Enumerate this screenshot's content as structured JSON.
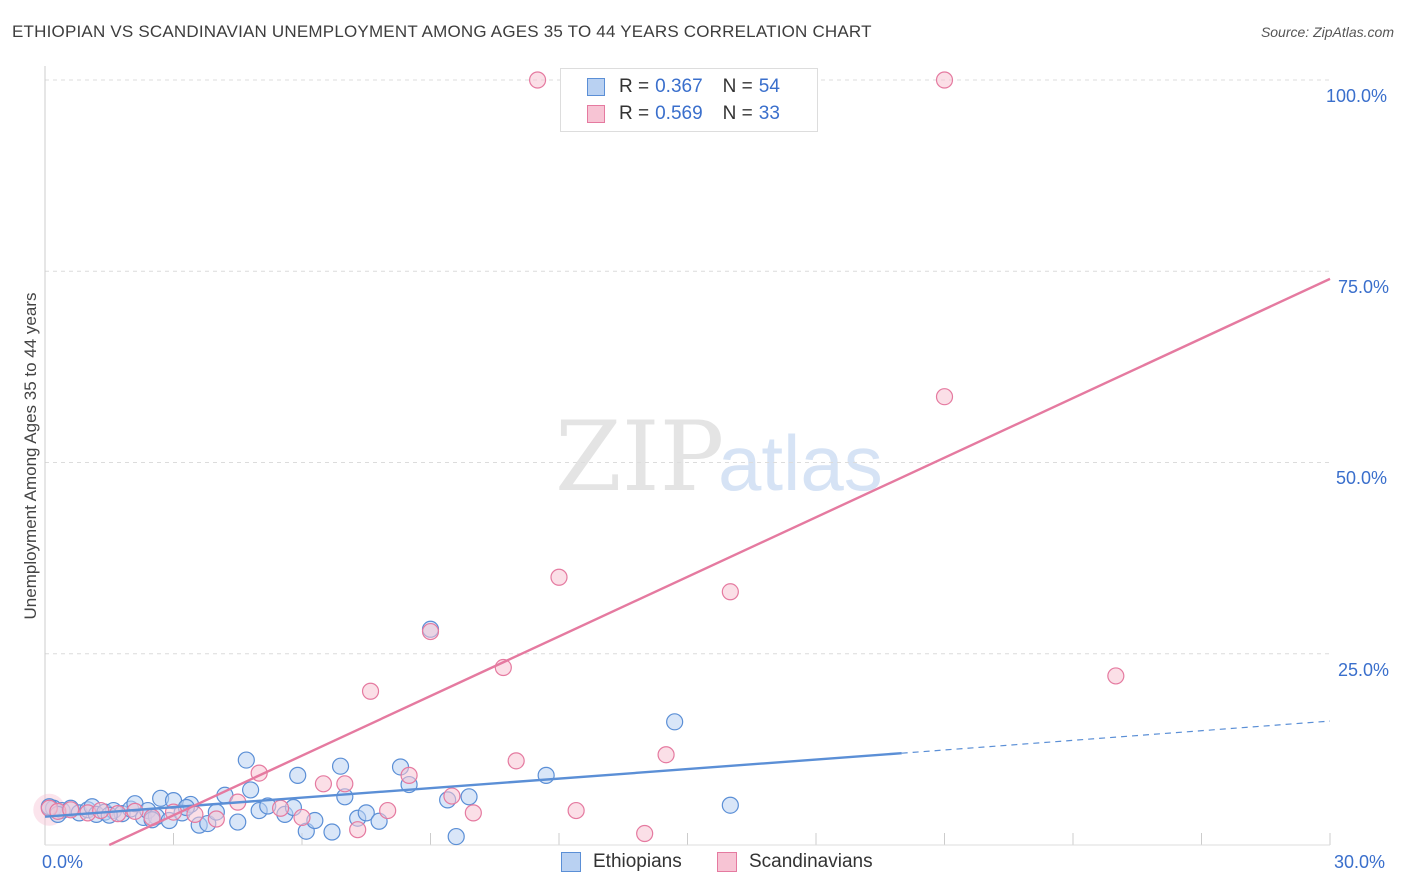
{
  "header": {
    "title": "ETHIOPIAN VS SCANDINAVIAN UNEMPLOYMENT AMONG AGES 35 TO 44 YEARS CORRELATION CHART",
    "source": "Source: ZipAtlas.com"
  },
  "watermark": {
    "zip": "ZIP",
    "atlas": "atlas"
  },
  "legend": {
    "r_label": "R =",
    "n_label": "N =",
    "ethiopians": {
      "r": "0.367",
      "n": "54",
      "color": "#5b8fd6",
      "fill": "#b9d1f2"
    },
    "scandinavians": {
      "r": "0.569",
      "n": "33",
      "color": "#e57aa0",
      "fill": "#f7c4d4"
    }
  },
  "bottom_legend": {
    "ethiopians": "Ethiopians",
    "scandinavians": "Scandinavians"
  },
  "axes": {
    "ylabel": "Unemployment Among Ages 35 to 44 years",
    "x_min_label": "0.0%",
    "x_max_label": "30.0%",
    "y_ticks": [
      "100.0%",
      "75.0%",
      "50.0%",
      "25.0%"
    ]
  },
  "chart_data": {
    "type": "scatter",
    "title": "ETHIOPIAN VS SCANDINAVIAN UNEMPLOYMENT AMONG AGES 35 TO 44 YEARS CORRELATION CHART",
    "xlabel": "",
    "ylabel": "Unemployment Among Ages 35 to 44 years",
    "xlim": [
      0,
      30
    ],
    "ylim": [
      0,
      100
    ],
    "y_ticks": [
      25,
      50,
      75,
      100
    ],
    "grid": true,
    "series": [
      {
        "name": "Ethiopians",
        "color": "#5b8fd6",
        "fill": "#b9d1f2",
        "r": 0.367,
        "n": 54,
        "trend": {
          "x0": 0,
          "y0": 3.7,
          "x1": 20.0,
          "y1": 12.0,
          "dashed_to_x": 30,
          "dashed_to_y": 16.2
        },
        "points": [
          [
            0.2,
            4.8
          ],
          [
            0.4,
            4.5
          ],
          [
            0.6,
            4.8
          ],
          [
            0.8,
            4.2
          ],
          [
            1.0,
            4.6
          ],
          [
            1.1,
            5.0
          ],
          [
            1.2,
            4.0
          ],
          [
            1.4,
            4.3
          ],
          [
            1.6,
            4.5
          ],
          [
            1.8,
            4.1
          ],
          [
            2.0,
            4.7
          ],
          [
            2.1,
            5.4
          ],
          [
            2.3,
            3.6
          ],
          [
            2.4,
            4.5
          ],
          [
            2.6,
            3.7
          ],
          [
            2.7,
            6.1
          ],
          [
            2.9,
            3.2
          ],
          [
            3.0,
            5.8
          ],
          [
            3.2,
            4.2
          ],
          [
            3.4,
            5.3
          ],
          [
            3.6,
            2.6
          ],
          [
            3.8,
            2.8
          ],
          [
            4.0,
            4.3
          ],
          [
            4.2,
            6.5
          ],
          [
            4.5,
            3.0
          ],
          [
            4.7,
            11.1
          ],
          [
            4.8,
            7.2
          ],
          [
            5.0,
            4.5
          ],
          [
            5.2,
            5.1
          ],
          [
            5.6,
            4.0
          ],
          [
            5.8,
            4.9
          ],
          [
            5.9,
            9.1
          ],
          [
            6.1,
            1.8
          ],
          [
            6.3,
            3.2
          ],
          [
            6.7,
            1.7
          ],
          [
            6.9,
            10.3
          ],
          [
            7.0,
            6.3
          ],
          [
            7.3,
            3.5
          ],
          [
            7.5,
            4.2
          ],
          [
            7.8,
            3.1
          ],
          [
            8.3,
            10.2
          ],
          [
            8.5,
            7.9
          ],
          [
            9.0,
            28.2
          ],
          [
            9.4,
            5.9
          ],
          [
            9.6,
            1.1
          ],
          [
            9.9,
            6.3
          ],
          [
            11.7,
            9.1
          ],
          [
            14.7,
            16.1
          ],
          [
            16.0,
            5.2
          ],
          [
            0.1,
            5.0
          ],
          [
            0.3,
            4.0
          ],
          [
            1.5,
            3.9
          ],
          [
            2.5,
            3.3
          ],
          [
            3.3,
            4.9
          ]
        ]
      },
      {
        "name": "Scandinavians",
        "color": "#e57aa0",
        "fill": "#f7c4d4",
        "r": 0.569,
        "n": 33,
        "trend": {
          "x0": 1.5,
          "y0": 0,
          "x1": 30,
          "y1": 74.0
        },
        "points": [
          [
            0.1,
            4.8
          ],
          [
            0.3,
            4.4
          ],
          [
            0.6,
            4.6
          ],
          [
            1.0,
            4.2
          ],
          [
            1.3,
            4.5
          ],
          [
            1.7,
            4.1
          ],
          [
            2.1,
            4.4
          ],
          [
            2.5,
            3.6
          ],
          [
            3.0,
            4.3
          ],
          [
            3.5,
            4.0
          ],
          [
            4.0,
            3.4
          ],
          [
            4.5,
            5.6
          ],
          [
            5.0,
            9.4
          ],
          [
            5.5,
            4.8
          ],
          [
            6.0,
            3.6
          ],
          [
            6.5,
            8.0
          ],
          [
            7.0,
            8.0
          ],
          [
            7.3,
            2.0
          ],
          [
            7.6,
            20.1
          ],
          [
            8.0,
            4.5
          ],
          [
            8.5,
            9.1
          ],
          [
            9.0,
            27.9
          ],
          [
            9.5,
            6.4
          ],
          [
            10.0,
            4.2
          ],
          [
            10.7,
            23.2
          ],
          [
            11.0,
            11.0
          ],
          [
            12.0,
            35.0
          ],
          [
            12.4,
            4.5
          ],
          [
            14.0,
            1.5
          ],
          [
            14.5,
            11.8
          ],
          [
            16.0,
            33.1
          ],
          [
            21.0,
            58.6
          ],
          [
            25.0,
            22.1
          ]
        ],
        "outliers_top": [
          [
            11.5,
            100
          ],
          [
            21.0,
            100
          ]
        ]
      }
    ]
  }
}
